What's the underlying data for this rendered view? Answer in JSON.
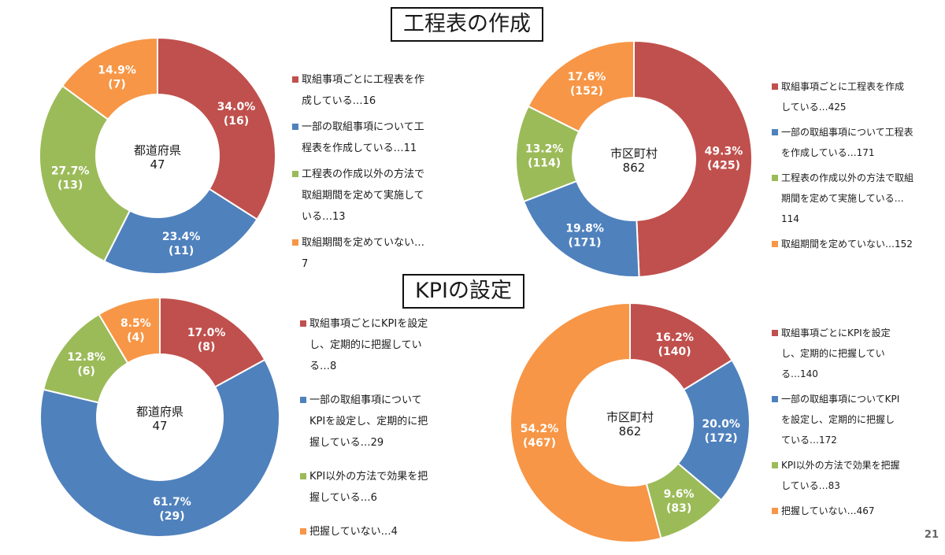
{
  "sections": [
    {
      "title": "工程表の作成"
    },
    {
      "title": "KPIの設定"
    }
  ],
  "colors": {
    "red": "#C0504D",
    "blue": "#4F81BD",
    "green": "#9BBB59",
    "orange": "#F79646"
  },
  "chart_data": [
    {
      "type": "pie",
      "center_label": "都道府県",
      "total": "47",
      "slices": [
        {
          "name": "取組事項ごとに工程表を作成している",
          "pct_label": "34.0%",
          "count_label": "(16)",
          "value": 16,
          "color": "#C0504D"
        },
        {
          "name": "一部の取組事項について工程表を作成している",
          "pct_label": "23.4%",
          "count_label": "(11)",
          "value": 11,
          "color": "#4F81BD"
        },
        {
          "name": "工程表の作成以外の方法で取組期間を定めて実施している",
          "pct_label": "27.7%",
          "count_label": "(13)",
          "value": 13,
          "color": "#9BBB59"
        },
        {
          "name": "取組期間を定めていない",
          "pct_label": "14.9%",
          "count_label": "(7)",
          "value": 7,
          "color": "#F79646"
        }
      ],
      "legend": [
        "取組事項ごとに工程表を作成している…16",
        "一部の取組事項について工程表を作成している…11",
        "工程表の作成以外の方法で取組期間を定めて実施している…13",
        "取組期間を定めていない…7"
      ]
    },
    {
      "type": "pie",
      "center_label": "市区町村",
      "total": "862",
      "slices": [
        {
          "name": "取組事項ごとに工程表を作成している",
          "pct_label": "49.3%",
          "count_label": "(425)",
          "value": 425,
          "color": "#C0504D"
        },
        {
          "name": "一部の取組事項について工程表を作成している",
          "pct_label": "19.8%",
          "count_label": "(171)",
          "value": 171,
          "color": "#4F81BD"
        },
        {
          "name": "工程表の作成以外の方法で取組期間を定めて実施している",
          "pct_label": "13.2%",
          "count_label": "(114)",
          "value": 114,
          "color": "#9BBB59"
        },
        {
          "name": "取組期間を定めていない",
          "pct_label": "17.6%",
          "count_label": "(152)",
          "value": 152,
          "color": "#F79646"
        }
      ],
      "legend": [
        "取組事項ごとに工程表を作成している…425",
        "一部の取組事項について工程表を作成している…171",
        "工程表の作成以外の方法で取組期間を定めて実施している…114",
        "取組期間を定めていない…152"
      ]
    },
    {
      "type": "pie",
      "center_label": "都道府県",
      "total": "47",
      "slices": [
        {
          "name": "取組事項ごとにKPIを設定し、定期的に把握している",
          "pct_label": "17.0%",
          "count_label": "(8)",
          "value": 8,
          "color": "#C0504D"
        },
        {
          "name": "一部の取組事項についてKPIを設定し、定期的に把握している",
          "pct_label": "61.7%",
          "count_label": "(29)",
          "value": 29,
          "color": "#4F81BD"
        },
        {
          "name": "KPI以外の方法で効果を把握している",
          "pct_label": "12.8%",
          "count_label": "(6)",
          "value": 6,
          "color": "#9BBB59"
        },
        {
          "name": "把握していない",
          "pct_label": "8.5%",
          "count_label": "(4)",
          "value": 4,
          "color": "#F79646"
        }
      ],
      "legend": [
        "取組事項ごとにKPIを設定し、定期的に把握している…8",
        "一部の取組事項についてKPIを設定し、定期的に把握している…29",
        "KPI以外の方法で効果を把握している…6",
        "把握していない…4"
      ]
    },
    {
      "type": "pie",
      "center_label": "市区町村",
      "total": "862",
      "slices": [
        {
          "name": "取組事項ごとにKPIを設定し、定期的に把握している",
          "pct_label": "16.2%",
          "count_label": "(140)",
          "value": 140,
          "color": "#C0504D"
        },
        {
          "name": "一部の取組事項についてKPIを設定し、定期的に把握している",
          "pct_label": "20.0%",
          "count_label": "(172)",
          "value": 172,
          "color": "#4F81BD"
        },
        {
          "name": "KPI以外の方法で効果を把握している",
          "pct_label": "9.6%",
          "count_label": "(83)",
          "value": 83,
          "color": "#9BBB59"
        },
        {
          "name": "把握していない",
          "pct_label": "54.2%",
          "count_label": "(467)",
          "value": 467,
          "color": "#F79646"
        }
      ],
      "legend": [
        "取組事項ごとにKPIを設定し、定期的に把握している…140",
        "一部の取組事項についてKPIを設定し、定期的に把握している…172",
        "KPI以外の方法で効果を把握している…83",
        "把握していない…467"
      ]
    }
  ],
  "page_number": "21"
}
